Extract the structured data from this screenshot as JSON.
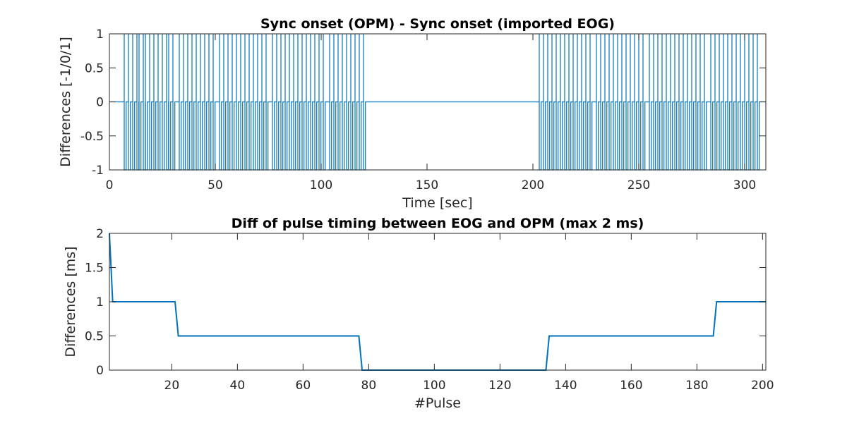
{
  "chart_data": [
    {
      "type": "line",
      "title": "Sync onset (OPM) - Sync onset (imported EOG)",
      "xlabel": "Time [sec]",
      "ylabel": "Differences [-1/0/1]",
      "xlim": [
        0,
        310
      ],
      "ylim": [
        -1,
        1
      ],
      "xticks": [
        "0",
        "50",
        "100",
        "150",
        "200",
        "250",
        "300"
      ],
      "yticks": [
        "-1",
        "-0.5",
        "0",
        "0.5",
        "1"
      ],
      "grid": false,
      "color": "#0072BD",
      "baseline": 0,
      "pulse_times": [
        7,
        9,
        11,
        13,
        14,
        16,
        17,
        19,
        21,
        23,
        25,
        27,
        28,
        30,
        33,
        35,
        37,
        39,
        41,
        43,
        45,
        47,
        49,
        52,
        54,
        56,
        58,
        60,
        62,
        64,
        66,
        68,
        70,
        72,
        74,
        77,
        79,
        81,
        83,
        85,
        87,
        89,
        91,
        93,
        95,
        97,
        99,
        101,
        104,
        106,
        108,
        110,
        112,
        114,
        116,
        118,
        120,
        203,
        205,
        207,
        209,
        211,
        213,
        215,
        217,
        219,
        221,
        223,
        225,
        227,
        230,
        232,
        234,
        236,
        238,
        240,
        242,
        244,
        246,
        248,
        250,
        252,
        255,
        257,
        259,
        261,
        263,
        265,
        267,
        269,
        271,
        273,
        275,
        277,
        279,
        281,
        284,
        286,
        288,
        290,
        292,
        294,
        296,
        298,
        300,
        302,
        304,
        306
      ]
    },
    {
      "type": "line",
      "title": "Diff of pulse timing between EOG and OPM (max 2 ms)",
      "xlabel": "#Pulse",
      "ylabel": "Differences [ms]",
      "xlim": [
        1,
        201
      ],
      "ylim": [
        0,
        2
      ],
      "xticks": [
        "20",
        "40",
        "60",
        "80",
        "100",
        "120",
        "140",
        "160",
        "180",
        "200"
      ],
      "yticks": [
        "0",
        "0.5",
        "1",
        "1.5",
        "2"
      ],
      "grid": false,
      "color": "#0072BD",
      "series": [
        {
          "x": [
            1,
            2,
            21,
            22,
            77,
            78,
            134,
            135,
            185,
            186,
            201
          ],
          "y": [
            2,
            1,
            1,
            0.5,
            0.5,
            0,
            0,
            0.5,
            0.5,
            1,
            1
          ]
        }
      ]
    }
  ]
}
